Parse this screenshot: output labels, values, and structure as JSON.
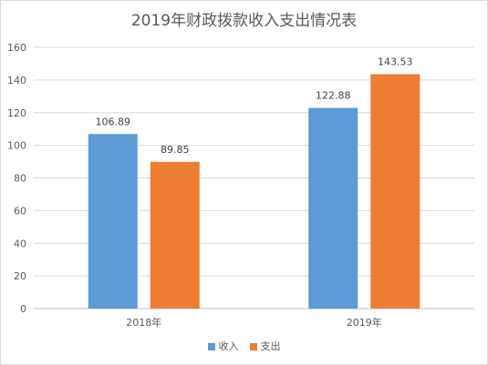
{
  "chart_data": {
    "type": "bar",
    "title": "2019年财政拨款收入支出情况表",
    "categories": [
      "2018年",
      "2019年"
    ],
    "series": [
      {
        "name": "收入",
        "color": "#5b9bd5",
        "values": [
          106.89,
          122.88
        ]
      },
      {
        "name": "支出",
        "color": "#ed7d31",
        "values": [
          89.85,
          143.53
        ]
      }
    ],
    "ylim": [
      0,
      160
    ],
    "yticks": [
      0,
      20,
      40,
      60,
      80,
      100,
      120,
      140,
      160
    ],
    "grid": true,
    "legend": "bottom",
    "xlabel": "",
    "ylabel": ""
  }
}
